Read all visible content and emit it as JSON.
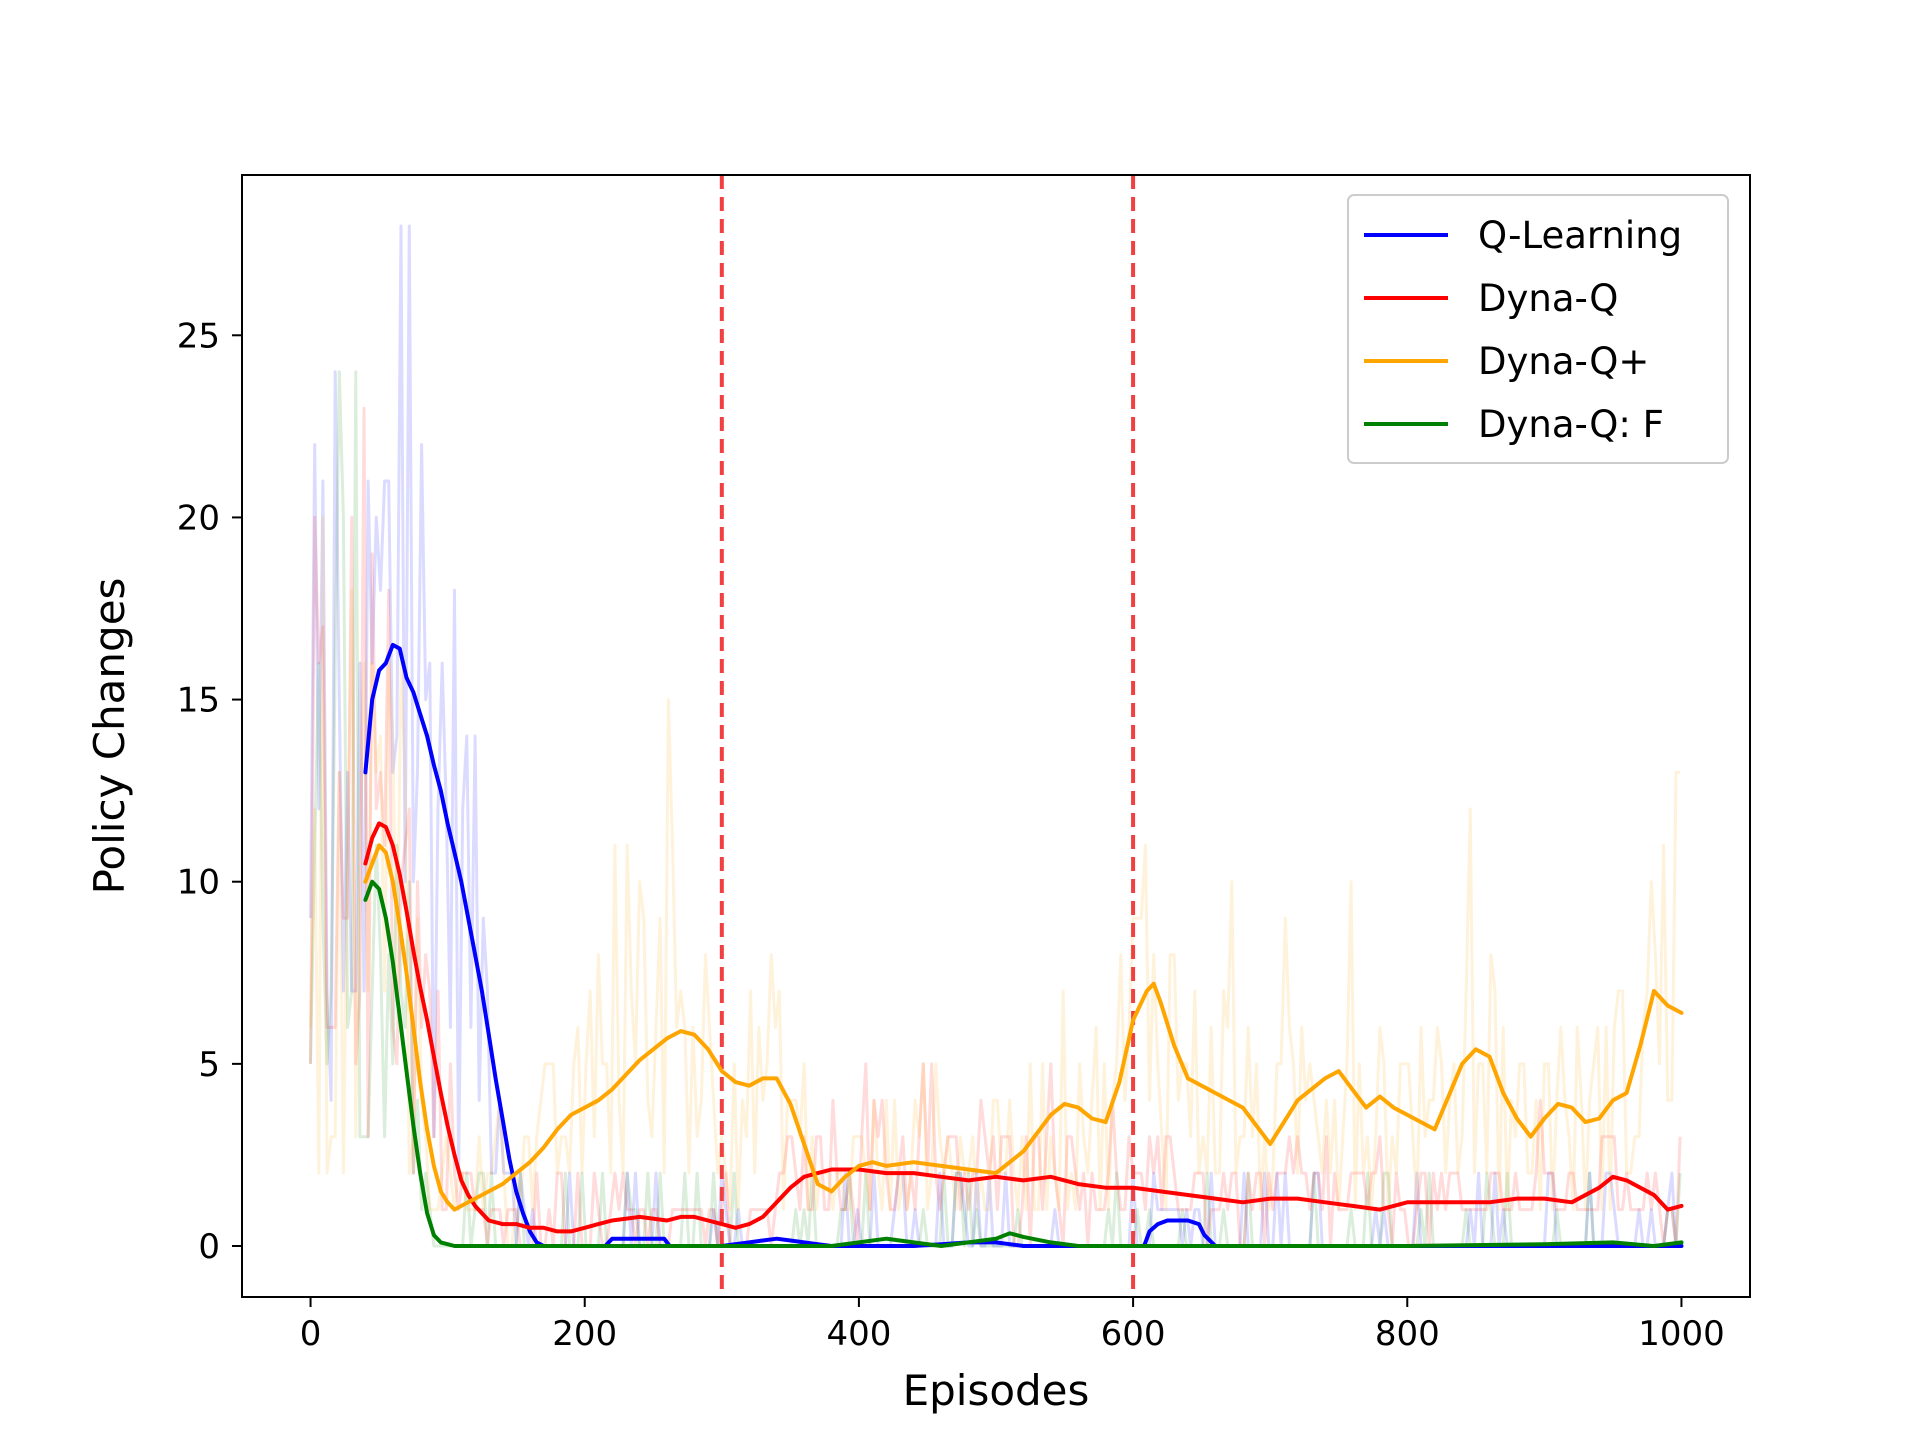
{
  "chart_data": {
    "type": "line",
    "title": "",
    "xlabel": "Episodes",
    "ylabel": "Policy Changes",
    "xlim": [
      -50,
      1050
    ],
    "ylim": [
      -1.4,
      29.4
    ],
    "xticks": [
      0,
      200,
      400,
      600,
      800,
      1000
    ],
    "yticks": [
      0,
      5,
      10,
      15,
      20,
      25
    ],
    "grid": false,
    "legend_position": "top-right",
    "vlines": [
      {
        "x": 300,
        "color": "#f04040",
        "style": "dashed"
      },
      {
        "x": 600,
        "color": "#f04040",
        "style": "dashed"
      }
    ],
    "series": [
      {
        "name": "Q-Learning",
        "color": "#0000ff",
        "x": [
          40,
          45,
          50,
          55,
          60,
          65,
          70,
          75,
          80,
          85,
          90,
          95,
          100,
          105,
          110,
          115,
          120,
          125,
          130,
          135,
          140,
          145,
          150,
          155,
          160,
          165,
          170,
          180,
          200,
          215,
          220,
          250,
          258,
          262,
          280,
          300,
          320,
          330,
          340,
          350,
          360,
          370,
          380,
          400,
          420,
          440,
          460,
          480,
          500,
          510,
          520,
          560,
          600,
          608,
          612,
          618,
          625,
          640,
          648,
          652,
          660,
          700,
          800,
          900,
          1000
        ],
        "y": [
          13,
          15,
          15.8,
          16,
          16.5,
          16.4,
          15.6,
          15.2,
          14.6,
          14,
          13.2,
          12.5,
          11.6,
          10.8,
          10,
          9,
          8,
          7,
          5.8,
          4.6,
          3.5,
          2.4,
          1.5,
          0.9,
          0.4,
          0.1,
          0,
          0,
          0,
          0,
          0.2,
          0.2,
          0.2,
          0,
          0,
          0,
          0.1,
          0.15,
          0.2,
          0.15,
          0.1,
          0.05,
          0,
          0,
          0,
          0,
          0.05,
          0.1,
          0.1,
          0.05,
          0,
          0,
          0,
          0,
          0.4,
          0.6,
          0.7,
          0.7,
          0.6,
          0.3,
          0,
          0,
          0,
          0,
          0
        ]
      },
      {
        "name": "Dyna-Q",
        "color": "#ff0000",
        "x": [
          40,
          45,
          50,
          55,
          60,
          65,
          70,
          75,
          80,
          85,
          90,
          95,
          100,
          105,
          110,
          115,
          120,
          125,
          130,
          140,
          150,
          160,
          170,
          180,
          190,
          200,
          210,
          220,
          240,
          260,
          270,
          280,
          290,
          300,
          310,
          320,
          330,
          340,
          350,
          360,
          370,
          380,
          390,
          400,
          420,
          440,
          460,
          480,
          500,
          520,
          540,
          560,
          580,
          600,
          620,
          640,
          660,
          680,
          700,
          720,
          740,
          760,
          780,
          800,
          820,
          840,
          860,
          880,
          900,
          920,
          940,
          950,
          960,
          980,
          990,
          1000
        ],
        "y": [
          10.5,
          11.2,
          11.6,
          11.5,
          11,
          10.2,
          9.2,
          8.1,
          7.1,
          6.2,
          5.2,
          4.2,
          3.3,
          2.5,
          1.8,
          1.4,
          1.1,
          0.9,
          0.7,
          0.6,
          0.6,
          0.5,
          0.5,
          0.4,
          0.4,
          0.5,
          0.6,
          0.7,
          0.8,
          0.7,
          0.8,
          0.8,
          0.7,
          0.6,
          0.5,
          0.6,
          0.8,
          1.2,
          1.6,
          1.9,
          2.0,
          2.1,
          2.1,
          2.1,
          2.0,
          2.0,
          1.9,
          1.8,
          1.9,
          1.8,
          1.9,
          1.7,
          1.6,
          1.6,
          1.5,
          1.4,
          1.3,
          1.2,
          1.3,
          1.3,
          1.2,
          1.1,
          1.0,
          1.2,
          1.2,
          1.2,
          1.2,
          1.3,
          1.3,
          1.2,
          1.6,
          1.9,
          1.8,
          1.4,
          1.0,
          1.1
        ]
      },
      {
        "name": "Dyna-Q+",
        "color": "#ffa500",
        "x": [
          40,
          45,
          50,
          55,
          60,
          65,
          70,
          75,
          80,
          85,
          90,
          95,
          100,
          105,
          110,
          120,
          130,
          140,
          150,
          160,
          170,
          180,
          190,
          200,
          210,
          220,
          230,
          240,
          250,
          260,
          270,
          280,
          290,
          300,
          310,
          320,
          330,
          340,
          350,
          360,
          370,
          380,
          390,
          400,
          410,
          420,
          440,
          460,
          480,
          500,
          520,
          540,
          550,
          560,
          570,
          580,
          590,
          600,
          610,
          615,
          620,
          630,
          640,
          660,
          680,
          700,
          720,
          740,
          750,
          760,
          770,
          780,
          790,
          800,
          820,
          840,
          850,
          860,
          870,
          880,
          890,
          900,
          910,
          920,
          930,
          940,
          950,
          960,
          970,
          980,
          990,
          1000
        ],
        "y": [
          10,
          10.5,
          11,
          10.8,
          10,
          8.8,
          7.5,
          6,
          4.5,
          3.2,
          2.2,
          1.5,
          1.2,
          1,
          1.1,
          1.3,
          1.5,
          1.7,
          2.0,
          2.3,
          2.7,
          3.2,
          3.6,
          3.8,
          4.0,
          4.3,
          4.7,
          5.1,
          5.4,
          5.7,
          5.9,
          5.8,
          5.4,
          4.8,
          4.5,
          4.4,
          4.6,
          4.6,
          3.9,
          2.8,
          1.7,
          1.5,
          1.9,
          2.2,
          2.3,
          2.2,
          2.3,
          2.2,
          2.1,
          2.0,
          2.6,
          3.6,
          3.9,
          3.8,
          3.5,
          3.4,
          4.5,
          6.2,
          7.0,
          7.2,
          6.7,
          5.5,
          4.6,
          4.2,
          3.8,
          2.8,
          4.0,
          4.6,
          4.8,
          4.3,
          3.8,
          4.1,
          3.8,
          3.6,
          3.2,
          5.0,
          5.4,
          5.2,
          4.2,
          3.5,
          3.0,
          3.5,
          3.9,
          3.8,
          3.4,
          3.5,
          4.0,
          4.2,
          5.5,
          7.0,
          6.6,
          6.4
        ]
      },
      {
        "name": "Dyna-Q: F",
        "color": "#008000",
        "x": [
          40,
          45,
          50,
          55,
          60,
          65,
          70,
          75,
          80,
          85,
          90,
          95,
          100,
          105,
          110,
          120,
          140,
          160,
          200,
          300,
          380,
          400,
          420,
          440,
          460,
          480,
          500,
          510,
          520,
          540,
          560,
          600,
          700,
          800,
          900,
          950,
          980,
          1000
        ],
        "y": [
          9.5,
          10,
          9.8,
          9,
          7.8,
          6.3,
          4.8,
          3.3,
          2,
          0.9,
          0.3,
          0.1,
          0.05,
          0,
          0,
          0,
          0,
          0,
          0,
          0,
          0,
          0.1,
          0.2,
          0.1,
          0,
          0.1,
          0.2,
          0.35,
          0.25,
          0.1,
          0,
          0,
          0,
          0,
          0.05,
          0.1,
          0,
          0.1
        ]
      }
    ]
  }
}
